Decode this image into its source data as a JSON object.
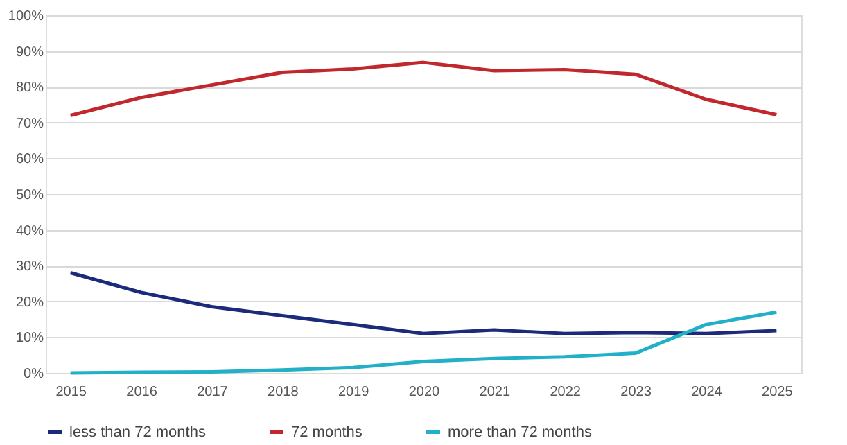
{
  "chart_data": {
    "type": "line",
    "categories": [
      "2015",
      "2016",
      "2017",
      "2018",
      "2019",
      "2020",
      "2021",
      "2022",
      "2023",
      "2024",
      "2025"
    ],
    "series": [
      {
        "name": "less than 72 months",
        "color": "#1b2a7a",
        "values": [
          28,
          22.5,
          18.5,
          16,
          13.5,
          11,
          12,
          11,
          11.3,
          11,
          11.8
        ]
      },
      {
        "name": "72 months",
        "color": "#c0282d",
        "values": [
          72,
          77,
          80.5,
          84,
          85,
          86.8,
          84.5,
          84.8,
          83.5,
          76.5,
          72.2
        ]
      },
      {
        "name": "more than 72 months",
        "color": "#22b0c8",
        "values": [
          0,
          0.2,
          0.3,
          0.8,
          1.5,
          3.2,
          4,
          4.5,
          5.5,
          13.5,
          17
        ]
      }
    ],
    "ylim": [
      0,
      100
    ],
    "yticks": [
      {
        "value": 0,
        "label": "0%"
      },
      {
        "value": 10,
        "label": "10%"
      },
      {
        "value": 20,
        "label": "20%"
      },
      {
        "value": 30,
        "label": "30%"
      },
      {
        "value": 40,
        "label": "40%"
      },
      {
        "value": 50,
        "label": "50%"
      },
      {
        "value": 60,
        "label": "60%"
      },
      {
        "value": 70,
        "label": "70%"
      },
      {
        "value": 80,
        "label": "80%"
      },
      {
        "value": 90,
        "label": "90%"
      },
      {
        "value": 100,
        "label": "100%"
      }
    ],
    "grid": "y",
    "legend": "bottom",
    "marker": "none",
    "line_style": "solid"
  }
}
